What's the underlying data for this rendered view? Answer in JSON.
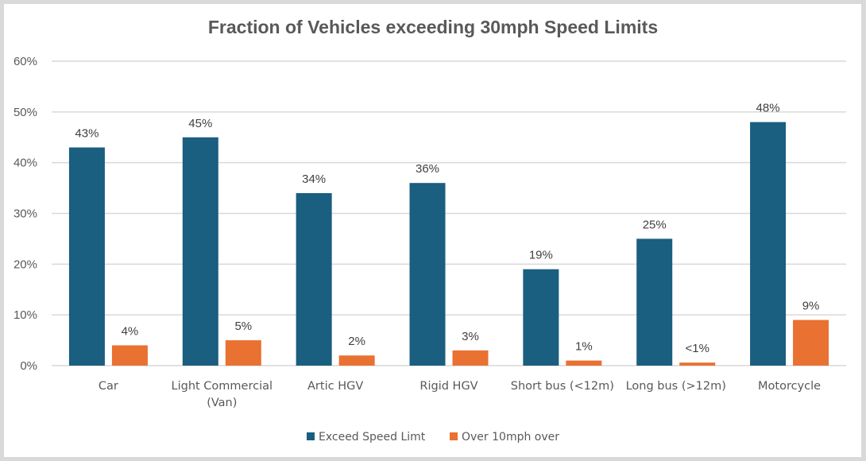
{
  "chart_data": {
    "type": "bar",
    "title": "Fraction of Vehicles exceeding 30mph Speed Limits",
    "xlabel": "",
    "ylabel": "",
    "ylim": [
      0,
      60
    ],
    "y_ticks": [
      0,
      10,
      20,
      30,
      40,
      50,
      60
    ],
    "y_tick_labels": [
      "0%",
      "10%",
      "20%",
      "30%",
      "40%",
      "50%",
      "60%"
    ],
    "grid": true,
    "legend_position": "bottom",
    "categories": [
      [
        "Car"
      ],
      [
        "Light Commercial",
        "(Van)"
      ],
      [
        "Artic HGV"
      ],
      [
        "Rigid HGV"
      ],
      [
        "Short bus (<12m)"
      ],
      [
        "Long bus (>12m)"
      ],
      [
        "Motorcycle"
      ]
    ],
    "series": [
      {
        "name": "Exceed Speed Limt",
        "color": "#1a5e80",
        "values": [
          43,
          45,
          34,
          36,
          19,
          25,
          48
        ],
        "labels": [
          "43%",
          "45%",
          "34%",
          "36%",
          "19%",
          "25%",
          "48%"
        ]
      },
      {
        "name": "Over 10mph over",
        "color": "#e97132",
        "values": [
          4,
          5,
          2,
          3,
          1,
          0.6,
          9
        ],
        "labels": [
          "4%",
          "5%",
          "2%",
          "3%",
          "1%",
          "<1%",
          "9%"
        ]
      }
    ]
  }
}
